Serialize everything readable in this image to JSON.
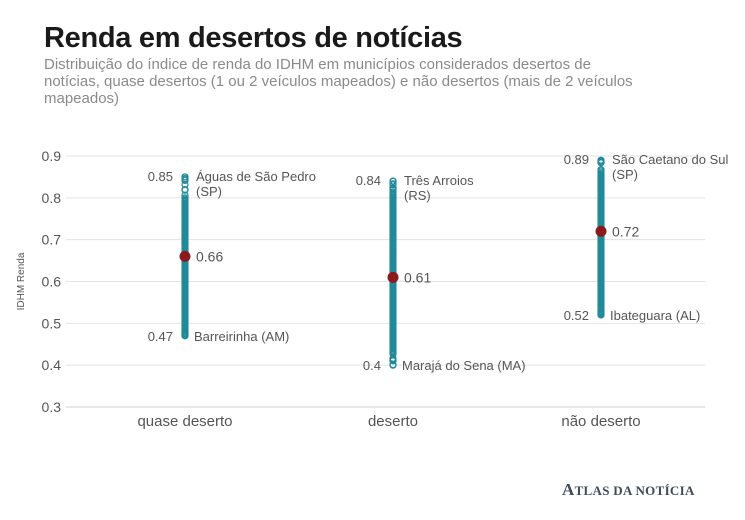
{
  "title": "Renda em desertos de notícias",
  "subtitle": "Distribuição do índice de renda do IDHM em municípios considerados desertos de notícias, quase desertos (1 ou 2 veículos mapeados) e não desertos (mais de 2 veículos mapeados)",
  "brand": {
    "initial": "A",
    "rest": "TLAS DA NOTÍCIA"
  },
  "colors": {
    "points": "#1f8a9a",
    "mean": "#8b1a1a",
    "grid": "#e3e3e3",
    "axis": "#cfcfcf",
    "text": "#555555"
  },
  "chart_data": {
    "type": "scatter",
    "title": "Renda em desertos de notícias",
    "xlabel": "",
    "ylabel": "IDHM Renda",
    "ylim": [
      0.3,
      0.9
    ],
    "yticks": [
      "0.3",
      "0.4",
      "0.5",
      "0.6",
      "0.7",
      "0.8",
      "0.9"
    ],
    "grid": true,
    "categories": [
      "quase deserto",
      "deserto",
      "não deserto"
    ],
    "groups": [
      {
        "category": "quase deserto",
        "range": [
          0.47,
          0.85
        ],
        "dense_range": [
          0.48,
          0.8
        ],
        "mean": 0.66,
        "mean_label": "0.66",
        "max": {
          "value": 0.85,
          "value_label": "0.85",
          "place": "Águas de São Pedro (SP)"
        },
        "min": {
          "value": 0.47,
          "value_label": "0.47",
          "place": "Barreirinha (AM)"
        }
      },
      {
        "category": "deserto",
        "range": [
          0.4,
          0.84
        ],
        "dense_range": [
          0.43,
          0.81
        ],
        "mean": 0.61,
        "mean_label": "0.61",
        "max": {
          "value": 0.84,
          "value_label": "0.84",
          "place": "Três Arroios (RS)"
        },
        "min": {
          "value": 0.4,
          "value_label": "0.4",
          "place": "Marajá do Sena (MA)"
        }
      },
      {
        "category": "não deserto",
        "range": [
          0.52,
          0.89
        ],
        "dense_range": [
          0.53,
          0.86
        ],
        "mean": 0.72,
        "mean_label": "0.72",
        "max": {
          "value": 0.89,
          "value_label": "0.89",
          "place": "São Caetano do Sul (SP)"
        },
        "min": {
          "value": 0.52,
          "value_label": "0.52",
          "place": "Ibateguara (AL)"
        }
      }
    ]
  }
}
